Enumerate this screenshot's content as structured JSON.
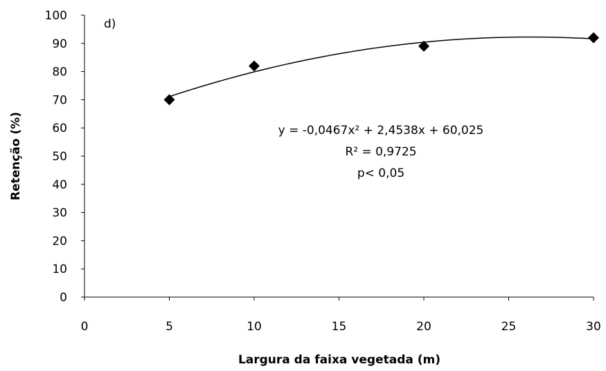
{
  "chart_data": {
    "type": "scatter",
    "panel_label": "d)",
    "xlabel": "Largura da faixa vegetada (m)",
    "ylabel": "Retenção (%)",
    "xlim": [
      0,
      30
    ],
    "ylim": [
      0,
      100
    ],
    "x_ticks": [
      0,
      5,
      10,
      15,
      20,
      25,
      30
    ],
    "y_ticks": [
      0,
      10,
      20,
      30,
      40,
      50,
      60,
      70,
      80,
      90,
      100
    ],
    "grid": false,
    "series": [
      {
        "marker": "diamond",
        "color": "#000000",
        "x": [
          5,
          10,
          20,
          30
        ],
        "y": [
          70,
          82,
          89,
          92
        ]
      }
    ],
    "trendline": {
      "type": "polynomial",
      "coefficients": {
        "a": -0.0467,
        "b": 2.4538,
        "c": 60.025
      },
      "x_range": [
        5,
        30
      ]
    },
    "annotations": {
      "equation": "y = -0,0467x² + 2,4538x + 60,025",
      "r2": "R² = 0,9725",
      "p": "p< 0,05"
    }
  }
}
